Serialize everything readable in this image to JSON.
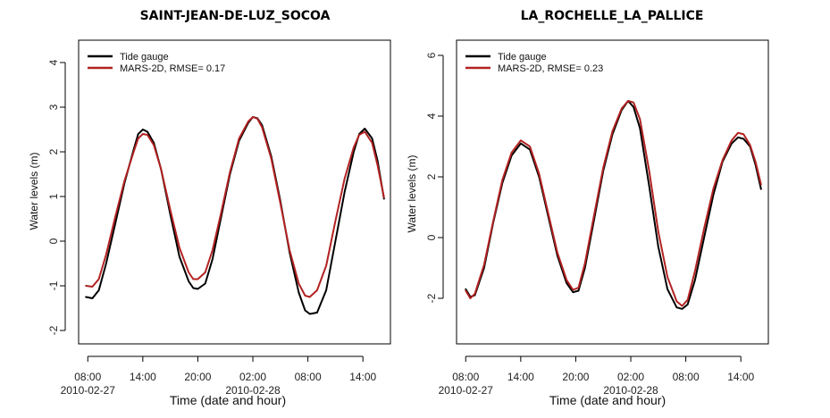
{
  "figure": {
    "xlabel": "Time (date and hour)",
    "colors": {
      "gauge": "#000000",
      "model": "#b22222"
    }
  },
  "chart_data": [
    {
      "type": "line",
      "title": "SAINT-JEAN-DE-LUZ_SOCOA",
      "xlabel": "Time (date and hour)",
      "ylabel": "Water levels (m)",
      "xlim": [
        -1,
        33
      ],
      "ylim": [
        -2.3,
        4.5
      ],
      "yticks": [
        -2,
        -1,
        0,
        1,
        2,
        3,
        4
      ],
      "xticks": [
        {
          "x": 0,
          "label": "08:00",
          "date": "2010-02-27"
        },
        {
          "x": 6,
          "label": "14:00",
          "date": ""
        },
        {
          "x": 12,
          "label": "20:00",
          "date": ""
        },
        {
          "x": 18,
          "label": "02:00",
          "date": "2010-02-28"
        },
        {
          "x": 24,
          "label": "08:00",
          "date": ""
        },
        {
          "x": 30,
          "label": "14:00",
          "date": ""
        }
      ],
      "legend": {
        "position": "top-left",
        "entries": [
          "Tide gauge",
          "MARS-2D, RMSE= 0.17"
        ]
      },
      "series": [
        {
          "name": "Tide gauge",
          "color": "#000000",
          "x": [
            -0.2,
            0.5,
            1.2,
            2,
            3,
            4,
            5,
            5.5,
            6,
            6.5,
            7.2,
            8,
            9,
            10,
            11,
            11.5,
            12,
            12.8,
            13.6,
            14.5,
            15.5,
            16.5,
            17.5,
            18,
            18.5,
            19,
            20,
            21,
            22,
            23,
            23.7,
            24.2,
            25,
            26,
            27,
            28,
            29,
            29.6,
            30.2,
            31,
            31.6,
            32.3
          ],
          "y": [
            -1.25,
            -1.28,
            -1.1,
            -0.5,
            0.4,
            1.3,
            2.05,
            2.4,
            2.5,
            2.45,
            2.2,
            1.6,
            0.6,
            -0.35,
            -0.9,
            -1.05,
            -1.07,
            -0.95,
            -0.4,
            0.5,
            1.5,
            2.25,
            2.65,
            2.78,
            2.75,
            2.6,
            1.9,
            0.9,
            -0.25,
            -1.15,
            -1.55,
            -1.63,
            -1.6,
            -1.1,
            0.0,
            1.1,
            2.0,
            2.4,
            2.52,
            2.3,
            1.8,
            0.95
          ]
        },
        {
          "name": "MARS-2D, RMSE= 0.17",
          "color": "#b22222",
          "x": [
            -0.2,
            0.5,
            1.2,
            2,
            3,
            4,
            5,
            5.5,
            6,
            6.5,
            7.2,
            8,
            9,
            10,
            11,
            11.5,
            12,
            12.8,
            13.6,
            14.5,
            15.5,
            16.5,
            17.5,
            18,
            18.5,
            19,
            20,
            21,
            22,
            23,
            23.7,
            24.2,
            25,
            26,
            27,
            28,
            29,
            29.6,
            30.2,
            31,
            31.6,
            32.3
          ],
          "y": [
            -1.0,
            -1.02,
            -0.85,
            -0.3,
            0.55,
            1.35,
            2.0,
            2.3,
            2.4,
            2.38,
            2.15,
            1.6,
            0.7,
            -0.15,
            -0.7,
            -0.85,
            -0.85,
            -0.7,
            -0.2,
            0.6,
            1.55,
            2.3,
            2.68,
            2.78,
            2.74,
            2.55,
            1.85,
            0.85,
            -0.2,
            -0.95,
            -1.22,
            -1.25,
            -1.1,
            -0.55,
            0.45,
            1.4,
            2.1,
            2.38,
            2.45,
            2.2,
            1.7,
            0.98
          ]
        }
      ]
    },
    {
      "type": "line",
      "title": "LA_ROCHELLE_LA_PALLICE",
      "xlabel": "Time (date and hour)",
      "ylabel": "Water levels (m)",
      "xlim": [
        -1,
        33
      ],
      "ylim": [
        -3.5,
        6.5
      ],
      "yticks": [
        -2,
        0,
        2,
        4,
        6
      ],
      "xticks": [
        {
          "x": 0,
          "label": "08:00",
          "date": "2010-02-27"
        },
        {
          "x": 6,
          "label": "14:00",
          "date": ""
        },
        {
          "x": 12,
          "label": "20:00",
          "date": ""
        },
        {
          "x": 18,
          "label": "02:00",
          "date": "2010-02-28"
        },
        {
          "x": 24,
          "label": "08:00",
          "date": ""
        },
        {
          "x": 30,
          "label": "14:00",
          "date": ""
        }
      ],
      "legend": {
        "position": "top-left",
        "entries": [
          "Tide gauge",
          "MARS-2D, RMSE= 0.23"
        ]
      },
      "series": [
        {
          "name": "Tide gauge",
          "color": "#000000",
          "x": [
            0,
            0.5,
            1,
            2,
            3,
            4,
            5,
            6,
            7,
            8,
            9,
            10,
            11,
            11.7,
            12.3,
            13,
            14,
            15,
            16,
            17,
            17.7,
            18.3,
            19,
            20,
            21,
            22,
            23,
            23.6,
            24.2,
            25,
            26,
            27,
            28,
            29,
            29.7,
            30.3,
            31,
            31.6,
            32.2
          ],
          "y": [
            -1.7,
            -1.95,
            -1.9,
            -1.0,
            0.5,
            1.8,
            2.7,
            3.1,
            2.9,
            2.0,
            0.7,
            -0.6,
            -1.5,
            -1.8,
            -1.75,
            -1.0,
            0.6,
            2.2,
            3.4,
            4.2,
            4.5,
            4.3,
            3.6,
            1.7,
            -0.3,
            -1.7,
            -2.3,
            -2.35,
            -2.2,
            -1.4,
            0.0,
            1.4,
            2.5,
            3.1,
            3.3,
            3.25,
            3.0,
            2.4,
            1.6
          ]
        },
        {
          "name": "MARS-2D, RMSE= 0.23",
          "color": "#b22222",
          "x": [
            0,
            0.5,
            1,
            2,
            3,
            4,
            5,
            6,
            7,
            8,
            9,
            10,
            11,
            11.7,
            12.3,
            13,
            14,
            15,
            16,
            17,
            17.7,
            18.3,
            19,
            20,
            21,
            22,
            23,
            23.6,
            24.2,
            25,
            26,
            27,
            28,
            29,
            29.7,
            30.3,
            31,
            31.6,
            32.2
          ],
          "y": [
            -1.75,
            -2.0,
            -1.85,
            -0.9,
            0.55,
            1.9,
            2.8,
            3.2,
            3.0,
            2.1,
            0.8,
            -0.5,
            -1.4,
            -1.72,
            -1.65,
            -0.85,
            0.75,
            2.3,
            3.5,
            4.25,
            4.5,
            4.45,
            3.9,
            2.2,
            0.2,
            -1.3,
            -2.1,
            -2.25,
            -2.05,
            -1.1,
            0.3,
            1.6,
            2.55,
            3.2,
            3.45,
            3.4,
            3.05,
            2.5,
            1.75
          ]
        }
      ]
    }
  ]
}
